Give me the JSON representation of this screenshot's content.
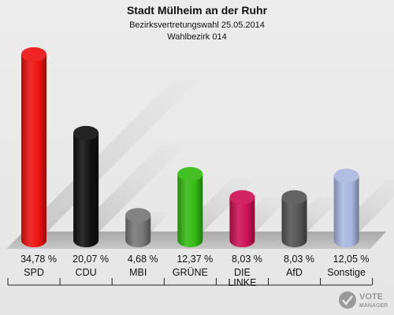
{
  "chart_data": {
    "type": "bar",
    "title": "Stadt Mülheim an der Ruhr",
    "subtitle": "Bezirksvertretungswahl 25.05.2014",
    "subtitle2": "Wahlbezirk 014",
    "categories": [
      "SPD",
      "CDU",
      "MBI",
      "GRÜNE",
      "DIE LINKE",
      "AfD",
      "Sonstige"
    ],
    "values": [
      34.78,
      20.07,
      4.68,
      12.37,
      8.03,
      8.03,
      12.05
    ],
    "value_labels": [
      "34,78 %",
      "20,07 %",
      "4,68 %",
      "12,37 %",
      "8,03 %",
      "8,03 %",
      "12,05 %"
    ],
    "colors": [
      "#ee1111",
      "#111111",
      "#777777",
      "#33bb11",
      "#cc1155",
      "#555555",
      "#aab8e0"
    ],
    "xlabel": "",
    "ylabel": "",
    "grid": false,
    "legend": "none"
  },
  "logo": {
    "line1": "VOTE",
    "line2": "MANAGER"
  }
}
